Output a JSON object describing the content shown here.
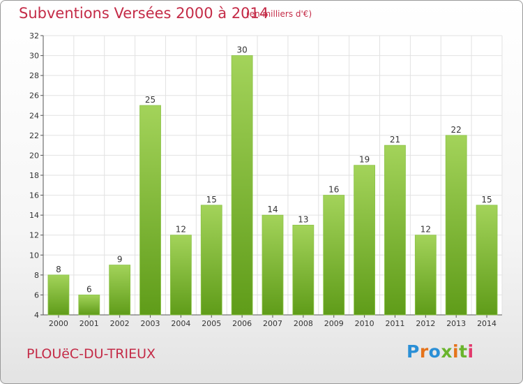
{
  "header": {
    "title": "Subventions Versées 2000 à 2014",
    "subtitle": "(en milliers d'€)"
  },
  "footer": {
    "commune": "PLOUëC-DU-TRIEUX",
    "logo_text": "Proxiti",
    "logo_colors": [
      "#2a8fd6",
      "#e5731b",
      "#2a8fd6",
      "#6ab42d",
      "#e5731b",
      "#6ab42d",
      "#e23a6c"
    ]
  },
  "colors": {
    "bar_top": "#a3d35a",
    "bar_bottom": "#5f9c19",
    "text_accent": "#c42b47",
    "grid": "#e2e2e2"
  },
  "chart_data": {
    "type": "bar",
    "title": "Subventions Versées 2000 à 2014",
    "subtitle": "(en milliers d'€)",
    "xlabel": "",
    "ylabel": "",
    "categories": [
      "2000",
      "2001",
      "2002",
      "2003",
      "2004",
      "2005",
      "2006",
      "2007",
      "2008",
      "2009",
      "2010",
      "2011",
      "2012",
      "2013",
      "2014"
    ],
    "values": [
      8,
      6,
      9,
      25,
      12,
      15,
      30,
      14,
      13,
      16,
      19,
      21,
      12,
      22,
      15
    ],
    "ylim": [
      4,
      32
    ],
    "yticks": [
      4,
      6,
      8,
      10,
      12,
      14,
      16,
      18,
      20,
      22,
      24,
      26,
      28,
      30,
      32
    ],
    "grid": true,
    "data_labels": true
  }
}
